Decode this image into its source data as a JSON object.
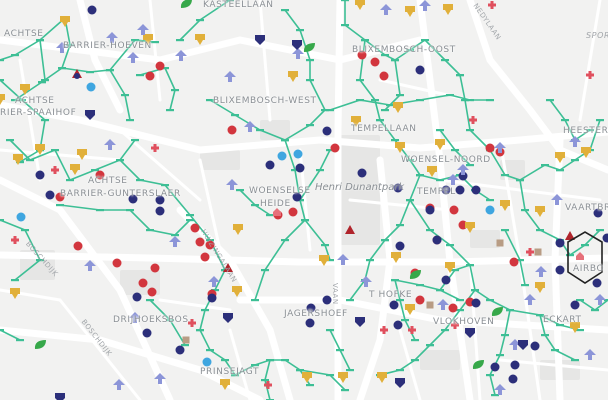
{
  "map": {
    "district_labels": [
      {
        "key": "kasteel",
        "text": "KASTEELLAAN"
      },
      {
        "key": "achtse_nw",
        "text": "ACHTSE"
      },
      {
        "key": "barrier_hoeven",
        "text": "BARRIER-HOEVEN"
      },
      {
        "key": "bliksembosch_oost",
        "text": "BLIXEMBOSCH-OOST"
      },
      {
        "key": "achtse_w",
        "text": "ACHTSE"
      },
      {
        "key": "barrier_spaaihof",
        "text": "RIER-SPAAIHOF"
      },
      {
        "key": "bliksembosch_west",
        "text": "BLIXEMBOSCH-WEST"
      },
      {
        "key": "tempellaan",
        "text": "TEMPELLAAN"
      },
      {
        "key": "heesterakker",
        "text": "HEESTERA"
      },
      {
        "key": "woensel_noord",
        "text": "WOENSEL-NOORD"
      },
      {
        "key": "tempel",
        "text": "TEMPEL"
      },
      {
        "key": "achtse_c",
        "text": "ACHTSE"
      },
      {
        "key": "barrier_gunterslaer",
        "text": "BARRIER-GUNTERSLAER"
      },
      {
        "key": "woenselse",
        "text": "WOENSELSE"
      },
      {
        "key": "heide",
        "text": "HEIDE"
      },
      {
        "key": "vaartbroek",
        "text": "VAARTBRO"
      },
      {
        "key": "t_hofke",
        "text": "T HOFKE"
      },
      {
        "key": "jagershoef",
        "text": "JAGERSHOEF"
      },
      {
        "key": "drijhoeksbos",
        "text": "DRIJHOEKSBOS"
      },
      {
        "key": "vlokhoven",
        "text": "VLOKHOVEN"
      },
      {
        "key": "eckart",
        "text": "ECKART"
      },
      {
        "key": "prinsejagt",
        "text": "PRINSEJAGT"
      },
      {
        "key": "airbo",
        "text": "AIRBO"
      }
    ],
    "street_labels": [
      {
        "key": "boschdijk",
        "text": "BOSCHDIJK"
      },
      {
        "key": "boschdijk2",
        "text": "BOSCHDIJK"
      },
      {
        "key": "huizingalaan",
        "text": "HUIZINGALAAN"
      },
      {
        "key": "vijvervaan",
        "text": "VAAN"
      },
      {
        "key": "kennedylaan",
        "text": "NEDYLAAN"
      },
      {
        "key": "sporthal",
        "text": "Spor"
      }
    ],
    "park_label": "Henri Dunantpark",
    "colors": {
      "background": "#f2f2f1",
      "road": "#ffffff",
      "network": "#3dbf95",
      "dot_red": "#d2363e",
      "dot_navy": "#2c2f7a",
      "dot_blue": "#3fa6e0",
      "arrow": "#8c95d8",
      "bin": "#e1b03a",
      "cross": "#e0505e",
      "shield": "#2c2f7a",
      "leaf": "#37a84a"
    }
  }
}
